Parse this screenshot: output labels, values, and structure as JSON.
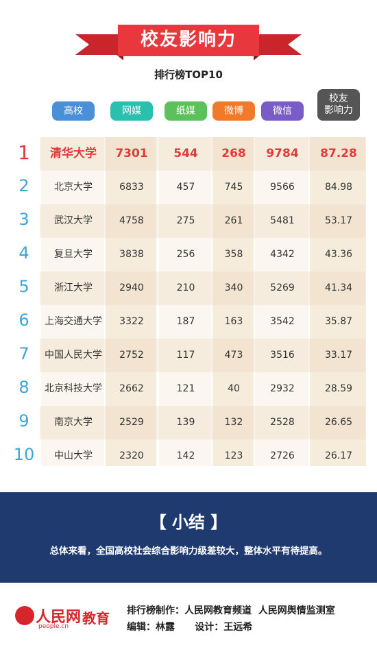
{
  "header": {
    "title": "校友影响力",
    "subtitle": "排行榜TOP10"
  },
  "table": {
    "columns": [
      "高校",
      "网媒",
      "纸媒",
      "微博",
      "微信",
      "校友\n影响力"
    ],
    "rows": [
      [
        "1",
        "清华大学",
        "7301",
        "544",
        "268",
        "9784",
        "87.28"
      ],
      [
        "2",
        "北京大学",
        "6833",
        "457",
        "745",
        "9566",
        "84.98"
      ],
      [
        "3",
        "武汉大学",
        "4758",
        "275",
        "261",
        "5481",
        "53.17"
      ],
      [
        "4",
        "复旦大学",
        "3838",
        "256",
        "358",
        "4342",
        "43.36"
      ],
      [
        "5",
        "浙江大学",
        "2940",
        "210",
        "340",
        "5269",
        "41.34"
      ],
      [
        "6",
        "上海交通大学",
        "3322",
        "187",
        "163",
        "3542",
        "35.87"
      ],
      [
        "7",
        "中国人民大学",
        "2752",
        "117",
        "473",
        "3516",
        "33.17"
      ],
      [
        "8",
        "北京科技大学",
        "2662",
        "121",
        "40",
        "2932",
        "28.59"
      ],
      [
        "9",
        "南京大学",
        "2529",
        "139",
        "132",
        "2528",
        "26.65"
      ],
      [
        "10",
        "中山大学",
        "2320",
        "142",
        "123",
        "2726",
        "26.17"
      ]
    ]
  },
  "summary": {
    "title": "【 小结 】",
    "text": "总体来看，全国高校社会综合影响力级差较大，整体水平有待提高。"
  },
  "footer": {
    "logo": "人民网",
    "logo_sub": "people.cn",
    "logo_channel": "教育",
    "credits": [
      "排行榜制作：人民网教育频道  人民网舆情监测室",
      "编辑：林露      设计：王远希"
    ]
  }
}
